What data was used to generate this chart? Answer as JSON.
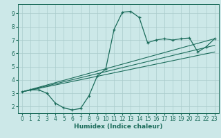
{
  "title": "",
  "xlabel": "Humidex (Indice chaleur)",
  "bg_color": "#cce8e8",
  "grid_color": "#aacccc",
  "line_color": "#1a6b5a",
  "xlim": [
    -0.5,
    23.5
  ],
  "ylim": [
    1.5,
    9.7
  ],
  "yticks": [
    2,
    3,
    4,
    5,
    6,
    7,
    8,
    9
  ],
  "xticks": [
    0,
    1,
    2,
    3,
    4,
    5,
    6,
    7,
    8,
    9,
    10,
    11,
    12,
    13,
    14,
    15,
    16,
    17,
    18,
    19,
    20,
    21,
    22,
    23
  ],
  "curve": {
    "x": [
      0,
      1,
      2,
      3,
      4,
      5,
      6,
      7,
      8,
      9,
      10,
      11,
      12,
      13,
      14,
      15,
      16,
      17,
      18,
      19,
      20,
      21,
      22,
      23
    ],
    "y": [
      3.1,
      3.25,
      3.25,
      3.0,
      2.25,
      1.9,
      1.75,
      1.85,
      2.8,
      4.3,
      4.8,
      7.8,
      9.1,
      9.15,
      8.7,
      6.8,
      7.0,
      7.1,
      7.0,
      7.1,
      7.15,
      6.1,
      6.5,
      7.1
    ]
  },
  "lines": [
    {
      "x": [
        0,
        23
      ],
      "y": [
        3.1,
        7.1
      ]
    },
    {
      "x": [
        0,
        23
      ],
      "y": [
        3.1,
        6.6
      ]
    },
    {
      "x": [
        0,
        23
      ],
      "y": [
        3.1,
        6.1
      ]
    }
  ]
}
